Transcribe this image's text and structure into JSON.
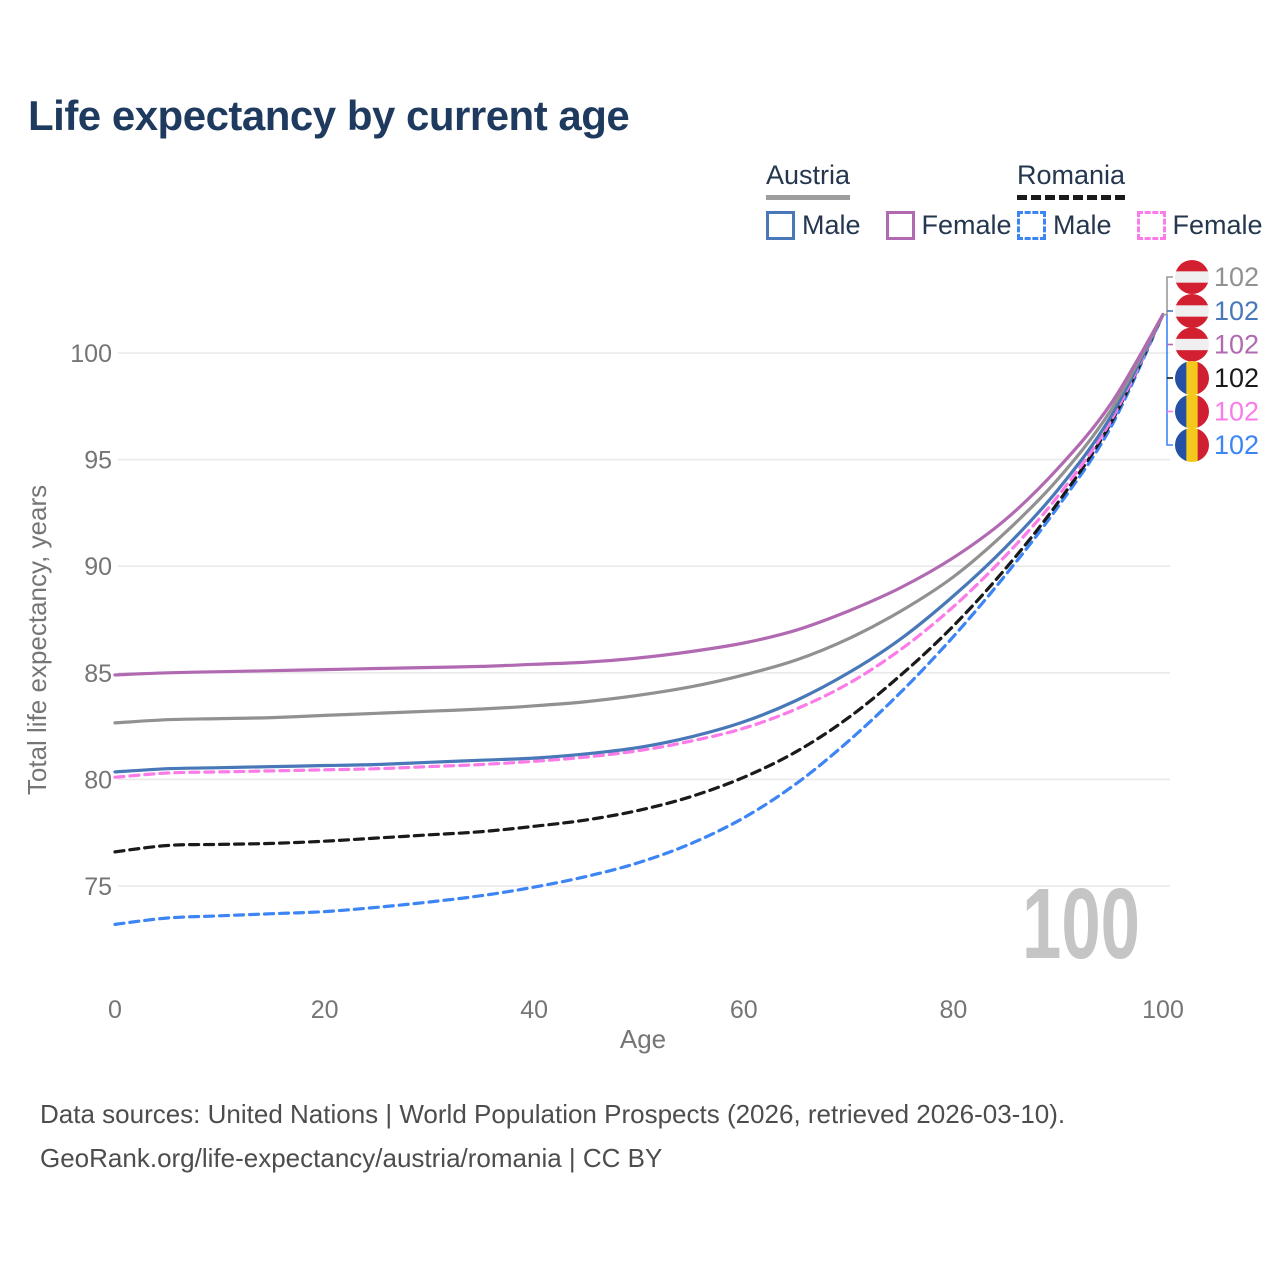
{
  "title": "Life expectancy by current age",
  "colors": {
    "title_text": "#1e3a5f",
    "legend_text": "#24374f",
    "axis_text": "#757575",
    "gridline": "#e9e9e9",
    "watermark": "#c5c5c5",
    "footer_text": "#4d4d4d",
    "background": "#ffffff"
  },
  "legend": {
    "groups": [
      {
        "label": "Austria",
        "underline_style": "solid",
        "underline_color": "#9e9e9e",
        "items": [
          {
            "label": "Male",
            "color": "#4878b8",
            "dash": false
          },
          {
            "label": "Female",
            "color": "#b16ab1",
            "dash": false
          }
        ]
      },
      {
        "label": "Romania",
        "underline_style": "dashed",
        "underline_color": "#1a1a1a",
        "items": [
          {
            "label": "Male",
            "color": "#3d85f5",
            "dash": true
          },
          {
            "label": "Female",
            "color": "#fb7ce8",
            "dash": true
          }
        ]
      }
    ]
  },
  "chart_data": {
    "type": "line",
    "title": "Life expectancy by current age",
    "xlabel": "Age",
    "ylabel": "Total life expectancy, years",
    "xlim": [
      0,
      100
    ],
    "ylim": [
      72.5,
      103
    ],
    "xticks": [
      0,
      20,
      40,
      60,
      80,
      100
    ],
    "yticks": [
      75,
      80,
      85,
      90,
      95,
      100
    ],
    "grid": "horizontal",
    "legend_position": "top-right",
    "x": [
      0,
      5,
      10,
      15,
      20,
      25,
      30,
      35,
      40,
      45,
      50,
      55,
      60,
      65,
      70,
      75,
      80,
      85,
      90,
      95,
      100
    ],
    "series": [
      {
        "name": "Romania Male",
        "country": "Romania",
        "sex": "Male",
        "color": "#3d85f5",
        "dash": true,
        "values": [
          73.2,
          73.5,
          73.6,
          73.7,
          73.8,
          74.0,
          74.25,
          74.55,
          74.95,
          75.45,
          76.1,
          77.0,
          78.2,
          79.8,
          81.8,
          84.1,
          86.7,
          89.6,
          92.8,
          96.5,
          101.8
        ],
        "end_label": "102",
        "flag": "romania"
      },
      {
        "name": "Romania",
        "country": "Romania",
        "sex": "All",
        "color": "#1a1a1a",
        "dash": true,
        "values": [
          76.6,
          76.9,
          76.95,
          77.0,
          77.1,
          77.25,
          77.4,
          77.55,
          77.8,
          78.1,
          78.55,
          79.2,
          80.1,
          81.3,
          82.9,
          84.9,
          87.2,
          89.9,
          93.0,
          96.7,
          101.8
        ],
        "end_label": "102",
        "flag": "romania"
      },
      {
        "name": "Romania Female",
        "country": "Romania",
        "sex": "Female",
        "color": "#fb7ce8",
        "dash": true,
        "values": [
          80.1,
          80.3,
          80.35,
          80.4,
          80.45,
          80.5,
          80.6,
          80.7,
          80.85,
          81.05,
          81.35,
          81.8,
          82.4,
          83.3,
          84.5,
          86.1,
          88.1,
          90.5,
          93.3,
          96.8,
          101.8
        ],
        "end_label": "102",
        "flag": "romania"
      },
      {
        "name": "Austria Male",
        "country": "Austria",
        "sex": "Male",
        "color": "#4878b8",
        "dash": false,
        "values": [
          80.35,
          80.5,
          80.55,
          80.6,
          80.65,
          80.7,
          80.8,
          80.9,
          81.0,
          81.2,
          81.5,
          82.0,
          82.7,
          83.7,
          85.0,
          86.6,
          88.6,
          90.9,
          93.6,
          97.0,
          101.8
        ],
        "end_label": "102",
        "flag": "austria"
      },
      {
        "name": "Austria",
        "country": "Austria",
        "sex": "All",
        "color": "#919191",
        "dash": false,
        "values": [
          82.65,
          82.8,
          82.85,
          82.9,
          83.0,
          83.1,
          83.2,
          83.3,
          83.45,
          83.65,
          83.95,
          84.35,
          84.9,
          85.6,
          86.6,
          87.9,
          89.5,
          91.6,
          94.1,
          97.3,
          101.8
        ],
        "end_label": "102",
        "flag": "austria"
      },
      {
        "name": "Austria Female",
        "country": "Austria",
        "sex": "Female",
        "color": "#b16ab1",
        "dash": false,
        "values": [
          84.9,
          85.0,
          85.05,
          85.1,
          85.15,
          85.2,
          85.25,
          85.3,
          85.4,
          85.5,
          85.7,
          86.0,
          86.4,
          87.0,
          87.9,
          89.0,
          90.4,
          92.2,
          94.6,
          97.6,
          101.8
        ],
        "end_label": "102",
        "flag": "austria"
      }
    ]
  },
  "end_labels": [
    {
      "flag": "austria",
      "value": "102",
      "color": "#919191",
      "series": "Austria"
    },
    {
      "flag": "austria",
      "value": "102",
      "color": "#4878b8",
      "series": "Austria Male"
    },
    {
      "flag": "austria",
      "value": "102",
      "color": "#b16ab1",
      "series": "Austria Female"
    },
    {
      "flag": "romania",
      "value": "102",
      "color": "#1a1a1a",
      "series": "Romania"
    },
    {
      "flag": "romania",
      "value": "102",
      "color": "#fb7ce8",
      "series": "Romania Female"
    },
    {
      "flag": "romania",
      "value": "102",
      "color": "#3d85f5",
      "series": "Romania Male"
    }
  ],
  "flag_colors": {
    "austria": [
      "#d22030",
      "#efefef",
      "#d22030"
    ],
    "romania": [
      "#2450a5",
      "#f5c81c",
      "#d01f32"
    ]
  },
  "watermark": "100",
  "footer": {
    "line1": "Data sources: United Nations | World Population Prospects (2026, retrieved 2026-03-10).",
    "line2": "GeoRank.org/life-expectancy/austria/romania | CC BY"
  }
}
